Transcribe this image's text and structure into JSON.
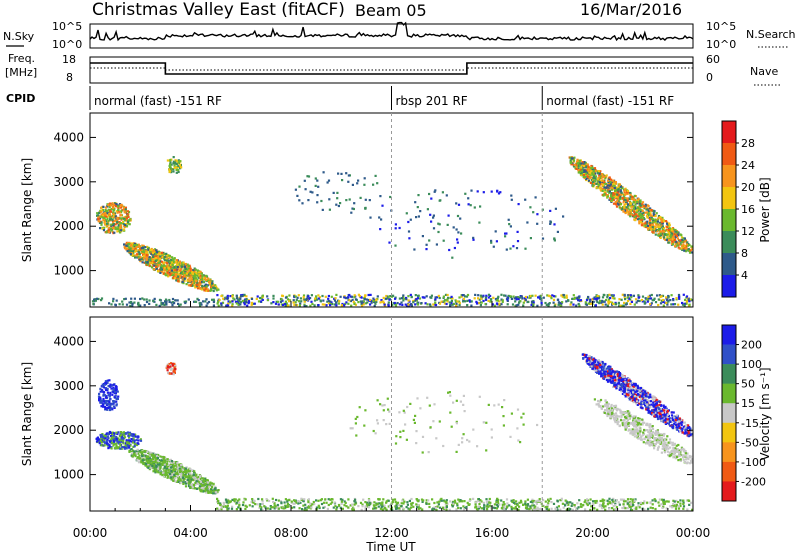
{
  "header": {
    "title": "Christmas Valley East (fitACF)",
    "beam": "Beam 05",
    "date": "16/Mar/2016"
  },
  "strips": {
    "nsky": {
      "label": "N.Sky",
      "tick_top": "10^5",
      "tick_bottom": "10^0",
      "right_top": "10^5",
      "right_bottom": "10^0",
      "right_label": "N.Search"
    },
    "freq": {
      "label_line1": "Freq.",
      "label_line2": "[MHz]",
      "tick_top": "18",
      "tick_bottom": "8",
      "right_top": "60",
      "right_bottom": "0",
      "right_label": "Nave"
    },
    "cpid": {
      "label": "CPID"
    }
  },
  "cpid_segments": [
    {
      "label": "normal (fast) -151 RF",
      "start_hour": 0
    },
    {
      "label": "rbsp 201 RF",
      "start_hour": 12
    },
    {
      "label": "normal (fast) -151 RF",
      "start_hour": 18
    }
  ],
  "chart_data": [
    {
      "type": "heatmap",
      "name": "power",
      "ylabel": "Slant Range [km]",
      "yticks": [
        1000,
        2000,
        3000,
        4000
      ],
      "ylim": [
        180,
        4550
      ],
      "xlim": [
        0,
        24
      ],
      "colorbar": {
        "label": "Power [dB]",
        "ticks": [
          "28",
          "24",
          "20",
          "16",
          "12",
          "8",
          "4"
        ],
        "colors": [
          "#e41a1c",
          "#f05a14",
          "#f7941d",
          "#f2c510",
          "#6ab82e",
          "#3b8c5a",
          "#2e5a8a",
          "#1c1ce8"
        ]
      }
    },
    {
      "type": "heatmap",
      "name": "velocity",
      "ylabel": "Slant Range [km]",
      "yticks": [
        1000,
        2000,
        3000,
        4000
      ],
      "ylim": [
        180,
        4550
      ],
      "xlim": [
        0,
        24
      ],
      "xticks": [
        "00:00",
        "04:00",
        "08:00",
        "12:00",
        "16:00",
        "20:00",
        "00:00"
      ],
      "xlabel": "Time UT",
      "colorbar": {
        "label": "Velocity [m s⁻¹]",
        "ticks": [
          "200",
          "100",
          "50",
          "15",
          "-15",
          "-50",
          "-100",
          "-200"
        ],
        "colors": [
          "#1c1ce8",
          "#3050c8",
          "#3b8c5a",
          "#6ab82e",
          "#c8c8c8",
          "#f2c510",
          "#f7941d",
          "#f05a14",
          "#e41a1c"
        ]
      }
    }
  ]
}
